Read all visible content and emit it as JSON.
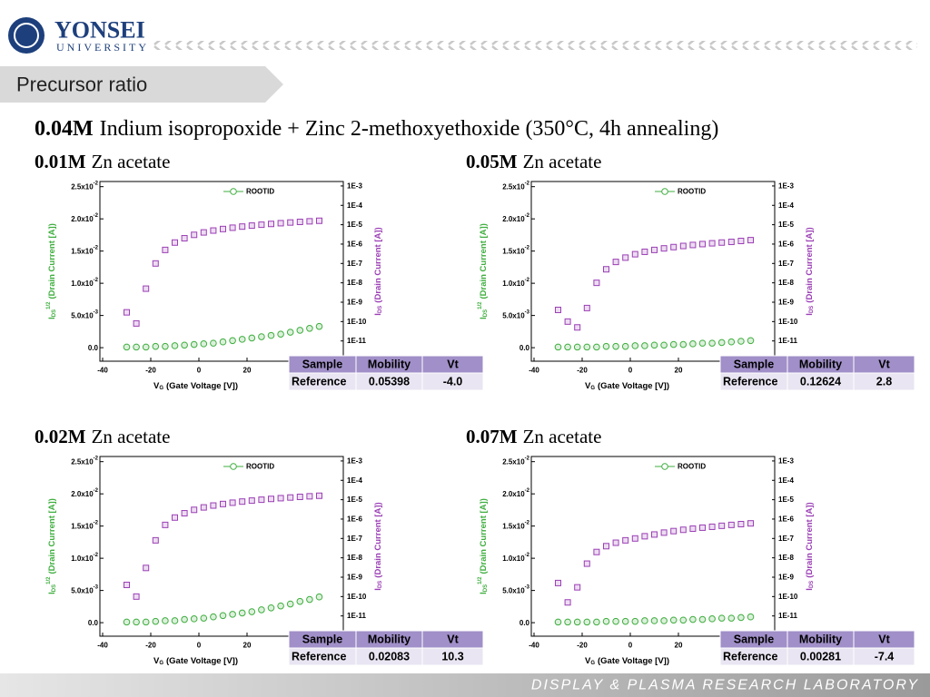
{
  "slide": {
    "logo_title": "YONSEI",
    "logo_subtitle": "UNIVERSITY",
    "section": "Precursor ratio",
    "heading": {
      "bold": "0.04M",
      "rest": "Indium isopropoxide + Zinc 2-methoxyethoxide (350°C, 4h annealing)"
    },
    "footer": "DISPLAY & PLASMA RESEARCH LABORATORY"
  },
  "chart_data": [
    {
      "type": "scatter",
      "concentration": "0.01M",
      "title": "Zn acetate",
      "xlabel": {
        "main": "V",
        "sub": "G",
        "rest": "(Gate Voltage [V])"
      },
      "ylabel": {
        "main": "I",
        "sub": "DS",
        "sup": "1/2",
        "rest": "(Drain Current [A])"
      },
      "y2label": {
        "main": "I",
        "sub": "DS",
        "rest": "(Drain Current [A])"
      },
      "xlim": [
        -40,
        60
      ],
      "xticks": [
        -40,
        -20,
        0,
        20
      ],
      "ylim": [
        -0.0021,
        0.0258
      ],
      "yticks": [
        {
          "value": 0,
          "label": "0.0"
        },
        {
          "value": 0.005,
          "label": "5.0x10",
          "exponent": "-3"
        },
        {
          "value": 0.01,
          "label": "1.0x10",
          "exponent": "-2"
        },
        {
          "value": 0.015,
          "label": "1.5x10",
          "exponent": "-2"
        },
        {
          "value": 0.02,
          "label": "2.0x10",
          "exponent": "-2"
        },
        {
          "value": 0.025,
          "label": "2.5x10",
          "exponent": "-2"
        }
      ],
      "y2log": true,
      "y2lim": [
        9e-13,
        0.0017
      ],
      "y2ticks": [
        {
          "value": 1e-11,
          "label": "1E-11"
        },
        {
          "value": 1e-10,
          "label": "1E-10"
        },
        {
          "value": 1e-09,
          "label": "1E-9"
        },
        {
          "value": 1e-08,
          "label": "1E-8"
        },
        {
          "value": 1e-07,
          "label": "1E-7"
        },
        {
          "value": 1e-06,
          "label": "1E-6"
        },
        {
          "value": 1e-05,
          "label": "1E-5"
        },
        {
          "value": 0.0001,
          "label": "1E-4"
        },
        {
          "value": 0.001,
          "label": "1E-3"
        }
      ],
      "x": [
        -30,
        -26,
        -22,
        -18,
        -14,
        -10,
        -6,
        -2,
        2,
        6,
        10,
        14,
        18,
        22,
        26,
        30,
        34,
        38,
        42,
        46,
        50
      ],
      "series": [
        {
          "name": "ROOTID",
          "color": "#3fae3f",
          "values": [
            0.0001,
            0.0001,
            0.0001,
            0.0002,
            0.0002,
            0.0003,
            0.0004,
            0.0005,
            0.0006,
            0.0007,
            0.0009,
            0.0011,
            0.0013,
            0.0015,
            0.0017,
            0.0019,
            0.0021,
            0.0024,
            0.0027,
            0.003,
            0.0033
          ]
        },
        {
          "color": "#9b3fb5",
          "axis": "y2",
          "values": [
            3e-10,
            8e-11,
            5e-09,
            1e-07,
            5e-07,
            1.2e-06,
            2e-06,
            3e-06,
            4e-06,
            5e-06,
            6e-06,
            7e-06,
            8e-06,
            9e-06,
            1e-05,
            1.1e-05,
            1.2e-05,
            1.3e-05,
            1.4e-05,
            1.5e-05,
            1.6e-05
          ]
        }
      ],
      "table": {
        "columns": [
          "Sample",
          "Mobility",
          "Vt"
        ],
        "rows": [
          [
            "Reference",
            "0.05398",
            "-4.0"
          ]
        ]
      }
    },
    {
      "type": "scatter",
      "concentration": "0.05M",
      "title": "Zn acetate",
      "xlabel": {
        "main": "V",
        "sub": "G",
        "rest": "(Gate Voltage [V])"
      },
      "ylabel": {
        "main": "I",
        "sub": "DS",
        "sup": "1/2",
        "rest": "(Drain Current [A])"
      },
      "y2label": {
        "main": "I",
        "sub": "DS",
        "rest": "(Drain Current [A])"
      },
      "xlim": [
        -40,
        60
      ],
      "xticks": [
        -40,
        -20,
        0,
        20
      ],
      "ylim": [
        -0.0021,
        0.0258
      ],
      "yticks": [
        {
          "value": 0,
          "label": "0.0"
        },
        {
          "value": 0.005,
          "label": "5.0x10",
          "exponent": "-3"
        },
        {
          "value": 0.01,
          "label": "1.0x10",
          "exponent": "-2"
        },
        {
          "value": 0.015,
          "label": "1.5x10",
          "exponent": "-2"
        },
        {
          "value": 0.02,
          "label": "2.0x10",
          "exponent": "-2"
        },
        {
          "value": 0.025,
          "label": "2.5x10",
          "exponent": "-2"
        }
      ],
      "y2log": true,
      "y2lim": [
        9e-13,
        0.0017
      ],
      "y2ticks": [
        {
          "value": 1e-11,
          "label": "1E-11"
        },
        {
          "value": 1e-10,
          "label": "1E-10"
        },
        {
          "value": 1e-09,
          "label": "1E-9"
        },
        {
          "value": 1e-08,
          "label": "1E-8"
        },
        {
          "value": 1e-07,
          "label": "1E-7"
        },
        {
          "value": 1e-06,
          "label": "1E-6"
        },
        {
          "value": 1e-05,
          "label": "1E-5"
        },
        {
          "value": 0.0001,
          "label": "1E-4"
        },
        {
          "value": 0.001,
          "label": "1E-3"
        }
      ],
      "x": [
        -30,
        -26,
        -22,
        -18,
        -14,
        -10,
        -6,
        -2,
        2,
        6,
        10,
        14,
        18,
        22,
        26,
        30,
        34,
        38,
        42,
        46,
        50
      ],
      "series": [
        {
          "name": "ROOTID",
          "color": "#3fae3f",
          "values": [
            0.0001,
            0.0001,
            0.0001,
            0.0001,
            0.0001,
            0.0002,
            0.0002,
            0.0002,
            0.0003,
            0.0003,
            0.0004,
            0.0004,
            0.0005,
            0.0005,
            0.0006,
            0.0007,
            0.0007,
            0.0008,
            0.0009,
            0.001,
            0.0011
          ]
        },
        {
          "color": "#9b3fb5",
          "axis": "y2",
          "values": [
            4e-10,
            1e-10,
            5e-11,
            5e-10,
            1e-08,
            5e-08,
            1.2e-07,
            2e-07,
            3e-07,
            4e-07,
            5e-07,
            6e-07,
            7e-07,
            8e-07,
            9e-07,
            1e-06,
            1.1e-06,
            1.2e-06,
            1.3e-06,
            1.45e-06,
            1.6e-06
          ]
        }
      ],
      "table": {
        "columns": [
          "Sample",
          "Mobility",
          "Vt"
        ],
        "rows": [
          [
            "Reference",
            "0.12624",
            "2.8"
          ]
        ]
      }
    },
    {
      "type": "scatter",
      "concentration": "0.02M",
      "title": "Zn acetate",
      "xlabel": {
        "main": "V",
        "sub": "G",
        "rest": "(Gate Voltage [V])"
      },
      "ylabel": {
        "main": "I",
        "sub": "DS",
        "sup": "1/2",
        "rest": "(Drain Current [A])"
      },
      "y2label": {
        "main": "I",
        "sub": "DS",
        "rest": "(Drain Current [A])"
      },
      "xlim": [
        -40,
        60
      ],
      "xticks": [
        -40,
        -20,
        0,
        20
      ],
      "ylim": [
        -0.0021,
        0.0258
      ],
      "yticks": [
        {
          "value": 0,
          "label": "0.0"
        },
        {
          "value": 0.005,
          "label": "5.0x10",
          "exponent": "-3"
        },
        {
          "value": 0.01,
          "label": "1.0x10",
          "exponent": "-2"
        },
        {
          "value": 0.015,
          "label": "1.5x10",
          "exponent": "-2"
        },
        {
          "value": 0.02,
          "label": "2.0x10",
          "exponent": "-2"
        },
        {
          "value": 0.025,
          "label": "2.5x10",
          "exponent": "-2"
        }
      ],
      "y2log": true,
      "y2lim": [
        9e-13,
        0.0017
      ],
      "y2ticks": [
        {
          "value": 1e-11,
          "label": "1E-11"
        },
        {
          "value": 1e-10,
          "label": "1E-10"
        },
        {
          "value": 1e-09,
          "label": "1E-9"
        },
        {
          "value": 1e-08,
          "label": "1E-8"
        },
        {
          "value": 1e-07,
          "label": "1E-7"
        },
        {
          "value": 1e-06,
          "label": "1E-6"
        },
        {
          "value": 1e-05,
          "label": "1E-5"
        },
        {
          "value": 0.0001,
          "label": "1E-4"
        },
        {
          "value": 0.001,
          "label": "1E-3"
        }
      ],
      "x": [
        -30,
        -26,
        -22,
        -18,
        -14,
        -10,
        -6,
        -2,
        2,
        6,
        10,
        14,
        18,
        22,
        26,
        30,
        34,
        38,
        42,
        46,
        50
      ],
      "series": [
        {
          "name": "ROOTID",
          "color": "#3fae3f",
          "values": [
            0.0001,
            0.0001,
            0.0001,
            0.0002,
            0.0003,
            0.0003,
            0.0005,
            0.0006,
            0.0007,
            0.0009,
            0.0011,
            0.0013,
            0.0015,
            0.0017,
            0.002,
            0.0023,
            0.0026,
            0.0029,
            0.0033,
            0.0036,
            0.004
          ]
        },
        {
          "color": "#9b3fb5",
          "axis": "y2",
          "values": [
            4e-10,
            1e-10,
            3e-09,
            8e-08,
            5e-07,
            1.2e-06,
            2e-06,
            3e-06,
            4e-06,
            5e-06,
            6e-06,
            7e-06,
            8e-06,
            9e-06,
            1e-05,
            1.1e-05,
            1.2e-05,
            1.3e-05,
            1.4e-05,
            1.5e-05,
            1.6e-05
          ]
        }
      ],
      "table": {
        "columns": [
          "Sample",
          "Mobility",
          "Vt"
        ],
        "rows": [
          [
            "Reference",
            "0.02083",
            "10.3"
          ]
        ]
      }
    },
    {
      "type": "scatter",
      "concentration": "0.07M",
      "title": "Zn acetate",
      "xlabel": {
        "main": "V",
        "sub": "G",
        "rest": "(Gate Voltage [V])"
      },
      "ylabel": {
        "main": "I",
        "sub": "DS",
        "sup": "1/2",
        "rest": "(Drain Current [A])"
      },
      "y2label": {
        "main": "I",
        "sub": "DS",
        "rest": "(Drain Current [A])"
      },
      "xlim": [
        -40,
        60
      ],
      "xticks": [
        -40,
        -20,
        0,
        20
      ],
      "ylim": [
        -0.0021,
        0.0258
      ],
      "yticks": [
        {
          "value": 0,
          "label": "0.0"
        },
        {
          "value": 0.005,
          "label": "5.0x10",
          "exponent": "-3"
        },
        {
          "value": 0.01,
          "label": "1.0x10",
          "exponent": "-2"
        },
        {
          "value": 0.015,
          "label": "1.5x10",
          "exponent": "-2"
        },
        {
          "value": 0.02,
          "label": "2.0x10",
          "exponent": "-2"
        },
        {
          "value": 0.025,
          "label": "2.5x10",
          "exponent": "-2"
        }
      ],
      "y2log": true,
      "y2lim": [
        9e-13,
        0.0017
      ],
      "y2ticks": [
        {
          "value": 1e-11,
          "label": "1E-11"
        },
        {
          "value": 1e-10,
          "label": "1E-10"
        },
        {
          "value": 1e-09,
          "label": "1E-9"
        },
        {
          "value": 1e-08,
          "label": "1E-8"
        },
        {
          "value": 1e-07,
          "label": "1E-7"
        },
        {
          "value": 1e-06,
          "label": "1E-6"
        },
        {
          "value": 1e-05,
          "label": "1E-5"
        },
        {
          "value": 0.0001,
          "label": "1E-4"
        },
        {
          "value": 0.001,
          "label": "1E-3"
        }
      ],
      "x": [
        -30,
        -26,
        -22,
        -18,
        -14,
        -10,
        -6,
        -2,
        2,
        6,
        10,
        14,
        18,
        22,
        26,
        30,
        34,
        38,
        42,
        46,
        50
      ],
      "series": [
        {
          "name": "ROOTID",
          "color": "#3fae3f",
          "values": [
            0.0001,
            0.0001,
            0.0001,
            0.0001,
            0.0001,
            0.0002,
            0.0002,
            0.0002,
            0.0002,
            0.0003,
            0.0003,
            0.0003,
            0.0004,
            0.0004,
            0.0005,
            0.0005,
            0.0006,
            0.0007,
            0.0007,
            0.0008,
            0.0009
          ]
        },
        {
          "color": "#9b3fb5",
          "axis": "y2",
          "values": [
            5e-10,
            5e-11,
            3e-10,
            5e-09,
            2e-08,
            4e-08,
            6e-08,
            8e-08,
            1e-07,
            1.3e-07,
            1.6e-07,
            2e-07,
            2.4e-07,
            2.8e-07,
            3.2e-07,
            3.6e-07,
            4e-07,
            4.5e-07,
            5e-07,
            5.5e-07,
            6e-07
          ]
        }
      ],
      "table": {
        "columns": [
          "Sample",
          "Mobility",
          "Vt"
        ],
        "rows": [
          [
            "Reference",
            "0.00281",
            "-7.4"
          ]
        ]
      }
    }
  ]
}
